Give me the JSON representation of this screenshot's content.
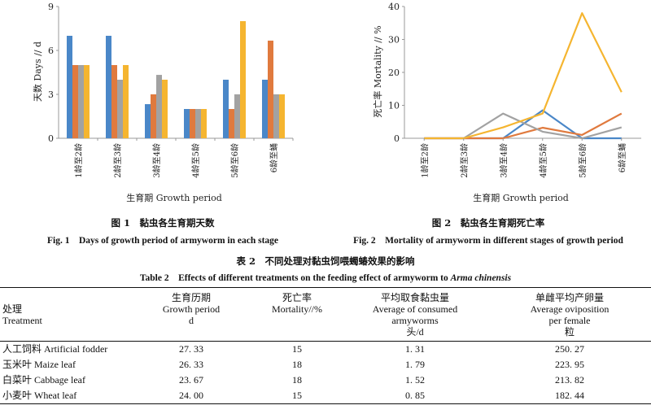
{
  "chart_data": [
    {
      "type": "bar",
      "title": "",
      "xlabel": "生育期 Growth period",
      "ylabel": "天数 Days // d",
      "ylim": [
        0,
        9
      ],
      "yticks": [
        0,
        3,
        6,
        9
      ],
      "grid": false,
      "categories": [
        "1龄至2龄",
        "2龄至3龄",
        "3龄至4龄",
        "4龄至5龄",
        "5龄至6龄",
        "6龄至蛹"
      ],
      "series": [
        {
          "color": "#4a87c8",
          "values": [
            7,
            7,
            2.33,
            2,
            4,
            4
          ]
        },
        {
          "color": "#e07a3e",
          "values": [
            5,
            5,
            3,
            2,
            2,
            6.67
          ]
        },
        {
          "color": "#a2a2a2",
          "values": [
            5,
            4,
            4.33,
            2,
            3,
            3
          ]
        },
        {
          "color": "#f5b530",
          "values": [
            5,
            5,
            4,
            2,
            8,
            3
          ]
        }
      ]
    },
    {
      "type": "line",
      "title": "",
      "xlabel": "生育期 Growth period",
      "ylabel": "死亡率 Mortality // %",
      "ylim": [
        0,
        40
      ],
      "yticks": [
        0,
        10,
        20,
        30,
        40
      ],
      "grid": false,
      "categories": [
        "1龄至2龄",
        "2龄至3龄",
        "3龄至4龄",
        "4龄至5龄",
        "5龄至6龄",
        "6龄至蛹"
      ],
      "series": [
        {
          "color": "#4a87c8",
          "values": [
            0,
            0,
            0,
            8.5,
            0,
            0
          ]
        },
        {
          "color": "#e07a3e",
          "values": [
            0,
            0,
            0,
            3.2,
            1,
            7.5
          ]
        },
        {
          "color": "#a2a2a2",
          "values": [
            0,
            0,
            7.5,
            2,
            0,
            3.3
          ]
        },
        {
          "color": "#f5b530",
          "values": [
            0,
            0,
            3.3,
            7.5,
            38,
            14
          ]
        }
      ]
    }
  ],
  "fig1": {
    "caption_cn": "图 1　黏虫各生育期天数",
    "caption_en": "Fig. 1　Days of growth period of armyworm in each stage"
  },
  "fig2": {
    "caption_cn": "图 2　黏虫各生育期死亡率",
    "caption_en": "Fig. 2　Mortality of armyworm in different stages of growth period"
  },
  "table": {
    "caption_cn": "表 2　不同处理对黏虫饲喂蠋蝽效果的影响",
    "caption_en_prefix": "Table 2　Effects of different treatments on the feeding effect of armyworm to ",
    "caption_en_species": "Arma chinensis",
    "headers": [
      [
        "处理",
        "Treatment"
      ],
      [
        "生育历期",
        "Growth period",
        "d"
      ],
      [
        "死亡率",
        "Mortality//%"
      ],
      [
        "平均取食黏虫量",
        "Average of consumed",
        "armyworms",
        "头/d"
      ],
      [
        "单雌平均产卵量",
        "Average oviposition",
        "per female",
        "粒"
      ]
    ],
    "rows": [
      [
        "人工饲料 Artificial fodder",
        "27. 33",
        "15",
        "1. 31",
        "250. 27"
      ],
      [
        "玉米叶 Maize leaf",
        "26. 33",
        "18",
        "1. 79",
        "223. 95"
      ],
      [
        "白菜叶 Cabbage leaf",
        "23. 67",
        "18",
        "1. 52",
        "213. 82"
      ],
      [
        "小麦叶 Wheat leaf",
        "24. 00",
        "15",
        "0. 85",
        "182. 44"
      ]
    ]
  }
}
